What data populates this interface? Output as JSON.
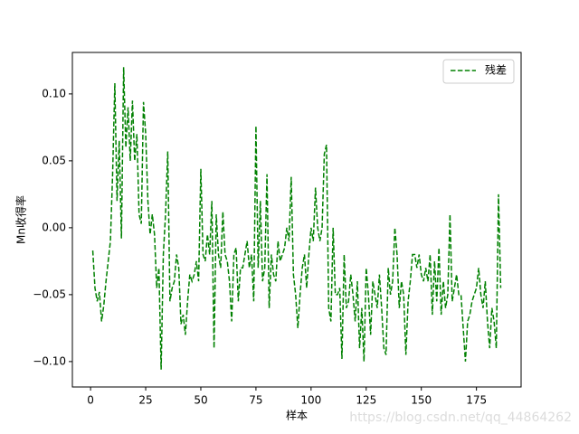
{
  "chart_data": {
    "type": "line",
    "xlabel": "样本",
    "ylabel": "Mn收得率",
    "x": [
      1,
      2,
      3,
      4,
      5,
      6,
      7,
      8,
      9,
      10,
      11,
      12,
      13,
      14,
      15,
      16,
      17,
      18,
      19,
      20,
      21,
      22,
      23,
      24,
      25,
      26,
      27,
      28,
      29,
      30,
      31,
      32,
      33,
      34,
      35,
      36,
      37,
      38,
      39,
      40,
      41,
      42,
      43,
      44,
      45,
      46,
      47,
      48,
      49,
      50,
      51,
      52,
      53,
      54,
      55,
      56,
      57,
      58,
      59,
      60,
      61,
      62,
      63,
      64,
      65,
      66,
      67,
      68,
      69,
      70,
      71,
      72,
      73,
      74,
      75,
      76,
      77,
      78,
      79,
      80,
      81,
      82,
      83,
      84,
      85,
      86,
      87,
      88,
      89,
      90,
      91,
      92,
      93,
      94,
      95,
      96,
      97,
      98,
      99,
      100,
      101,
      102,
      103,
      104,
      105,
      106,
      107,
      108,
      109,
      110,
      111,
      112,
      113,
      114,
      115,
      116,
      117,
      118,
      119,
      120,
      121,
      122,
      123,
      124,
      125,
      126,
      127,
      128,
      129,
      130,
      131,
      132,
      133,
      134,
      135,
      136,
      137,
      138,
      139,
      140,
      141,
      142,
      143,
      144,
      145,
      146,
      147,
      148,
      149,
      150,
      151,
      152,
      153,
      154,
      155,
      156,
      157,
      158,
      159,
      160,
      161,
      162,
      163,
      164,
      165,
      166,
      167,
      168,
      169,
      170,
      171,
      172,
      173,
      174,
      175,
      176,
      177,
      178,
      179,
      180,
      181,
      182,
      183,
      184,
      185,
      186
    ],
    "series": [
      {
        "name": "残差",
        "color": "#008000",
        "values": [
          -0.017,
          -0.045,
          -0.055,
          -0.048,
          -0.07,
          -0.058,
          -0.04,
          -0.025,
          -0.01,
          0.04,
          0.108,
          0.02,
          0.065,
          -0.008,
          0.12,
          0.06,
          0.09,
          0.05,
          0.095,
          0.05,
          0.07,
          0.01,
          0.003,
          0.094,
          0.07,
          0.02,
          -0.005,
          0.01,
          -0.005,
          -0.045,
          -0.03,
          -0.106,
          -0.02,
          0.01,
          0.057,
          -0.055,
          -0.045,
          -0.04,
          -0.02,
          -0.03,
          -0.072,
          -0.065,
          -0.08,
          -0.055,
          -0.035,
          -0.04,
          -0.035,
          -0.025,
          -0.04,
          0.044,
          -0.02,
          -0.025,
          -0.005,
          -0.02,
          0.02,
          -0.09,
          0.01,
          -0.02,
          -0.03,
          0.012,
          -0.02,
          -0.025,
          -0.04,
          -0.07,
          -0.02,
          -0.015,
          -0.055,
          -0.03,
          -0.03,
          -0.02,
          -0.01,
          -0.03,
          -0.02,
          -0.055,
          0.076,
          -0.03,
          0.02,
          -0.04,
          -0.03,
          0.04,
          -0.06,
          -0.02,
          -0.035,
          -0.04,
          -0.01,
          -0.025,
          -0.02,
          -0.015,
          0.0,
          -0.01,
          0.038,
          -0.035,
          -0.05,
          -0.075,
          -0.05,
          -0.03,
          -0.02,
          -0.045,
          -0.02,
          0.0,
          -0.01,
          0.03,
          0.0,
          -0.01,
          0.0,
          0.055,
          0.062,
          -0.06,
          -0.07,
          0.0,
          -0.05,
          -0.05,
          -0.045,
          -0.098,
          -0.02,
          -0.06,
          -0.055,
          -0.035,
          -0.05,
          -0.07,
          -0.04,
          -0.09,
          -0.06,
          -0.1,
          -0.03,
          -0.05,
          -0.08,
          -0.04,
          -0.05,
          -0.06,
          -0.035,
          -0.06,
          -0.09,
          -0.095,
          -0.03,
          -0.05,
          -0.04,
          0.0,
          -0.02,
          -0.06,
          -0.04,
          -0.05,
          -0.095,
          -0.055,
          -0.04,
          -0.02,
          -0.02,
          -0.03,
          -0.02,
          -0.035,
          -0.04,
          -0.03,
          -0.04,
          -0.02,
          -0.065,
          -0.025,
          -0.055,
          -0.015,
          -0.065,
          -0.04,
          -0.06,
          -0.05,
          0.01,
          -0.055,
          -0.045,
          -0.035,
          -0.05,
          -0.05,
          -0.075,
          -0.1,
          -0.07,
          -0.065,
          -0.055,
          -0.05,
          -0.045,
          -0.03,
          -0.05,
          -0.06,
          -0.04,
          -0.07,
          -0.09,
          -0.06,
          -0.07,
          -0.09,
          0.025,
          -0.045
        ]
      }
    ],
    "xlim": [
      -8.25,
      195.25
    ],
    "xticks": [
      0,
      25,
      50,
      75,
      100,
      125,
      150,
      175
    ],
    "ylim": [
      -0.119,
      0.131
    ],
    "yticks": [
      {
        "value": -0.1,
        "label": "−0.10"
      },
      {
        "value": -0.05,
        "label": "−0.05"
      },
      {
        "value": 0,
        "label": "0.00"
      },
      {
        "value": 0.05,
        "label": "0.05"
      },
      {
        "value": 0.1,
        "label": "0.10"
      }
    ],
    "legend": "upper right",
    "dashed": true,
    "annotation": "https://blog.csdn.net/qq_44864262"
  }
}
